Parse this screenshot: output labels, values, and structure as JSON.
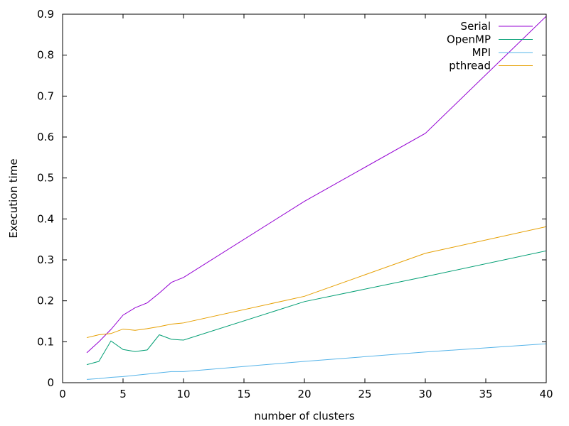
{
  "chart_data": {
    "type": "line",
    "title": "",
    "xlabel": "number of clusters",
    "ylabel": "Execution time",
    "xlim": [
      0,
      40
    ],
    "ylim": [
      0,
      0.9
    ],
    "xticks": [
      "0",
      "5",
      "10",
      "15",
      "20",
      "25",
      "30",
      "35",
      "40"
    ],
    "yticks": [
      "0",
      "0.1",
      "0.2",
      "0.3",
      "0.4",
      "0.5",
      "0.6",
      "0.7",
      "0.8",
      "0.9"
    ],
    "grid": false,
    "legend_position": "top-right",
    "series": [
      {
        "name": "Serial",
        "color": "#9400d3",
        "x": [
          2,
          3,
          4,
          5,
          6,
          7,
          8,
          9,
          10,
          20,
          30,
          40
        ],
        "y": [
          0.073,
          0.1,
          0.13,
          0.165,
          0.183,
          0.195,
          0.219,
          0.245,
          0.257,
          0.443,
          0.609,
          0.895
        ]
      },
      {
        "name": "OpenMP",
        "color": "#009e73",
        "x": [
          2,
          3,
          4,
          5,
          6,
          7,
          8,
          9,
          10,
          20,
          30,
          40
        ],
        "y": [
          0.044,
          0.052,
          0.102,
          0.081,
          0.076,
          0.08,
          0.117,
          0.106,
          0.104,
          0.198,
          0.259,
          0.322
        ]
      },
      {
        "name": "MPI",
        "color": "#56b4e9",
        "x": [
          2,
          3,
          4,
          5,
          6,
          7,
          8,
          9,
          10,
          20,
          30,
          40
        ],
        "y": [
          0.008,
          0.01,
          0.013,
          0.015,
          0.018,
          0.021,
          0.024,
          0.027,
          0.027,
          0.052,
          0.075,
          0.095
        ]
      },
      {
        "name": "pthread",
        "color": "#e69f00",
        "x": [
          2,
          3,
          4,
          5,
          6,
          7,
          8,
          9,
          10,
          20,
          30,
          40
        ],
        "y": [
          0.11,
          0.117,
          0.12,
          0.131,
          0.128,
          0.132,
          0.137,
          0.143,
          0.146,
          0.211,
          0.316,
          0.381
        ]
      }
    ]
  }
}
